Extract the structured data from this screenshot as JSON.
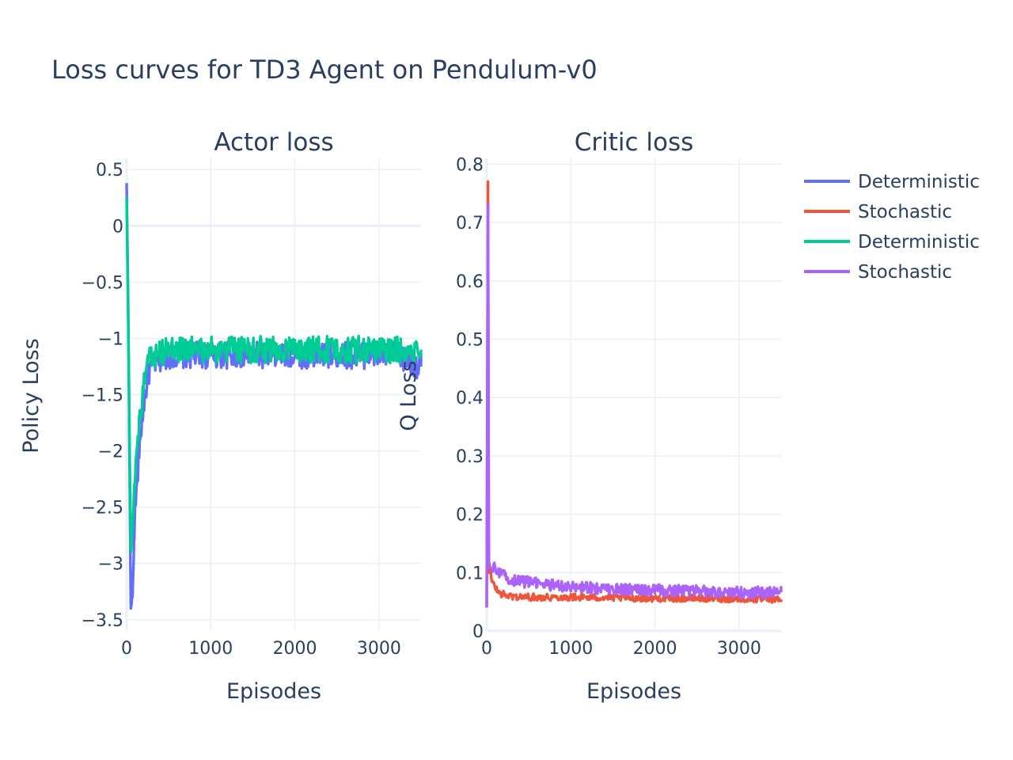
{
  "title": "Loss curves for TD3 Agent on Pendulum-v0",
  "legend": [
    "Deterministic",
    "Stochastic",
    "Deterministic",
    "Stochastic"
  ],
  "colors": {
    "deterministic_actor": "#636efa",
    "stochastic_actor": "#00cc96",
    "deterministic_critic": "#ef553b",
    "stochastic_critic": "#ab63fa",
    "text": "#2a3f5f",
    "grid": "#ebf0f8"
  },
  "chart_data": [
    {
      "type": "line",
      "title": "Actor loss",
      "xlabel": "Episodes",
      "ylabel": "Policy Loss",
      "xlim": [
        0,
        3500
      ],
      "ylim": [
        -3.6,
        0.6
      ],
      "xticks": [
        0,
        1000,
        2000,
        3000
      ],
      "xtick_labels": [
        "0",
        "1000",
        "2000",
        "3000"
      ],
      "yticks": [
        0.5,
        0,
        -0.5,
        -1,
        -1.5,
        -2,
        -2.5,
        -3,
        -3.5
      ],
      "ytick_labels": [
        "0.5",
        "0",
        "−0.5",
        "−1",
        "−1.5",
        "−2",
        "−2.5",
        "−3",
        "−3.5"
      ],
      "grid": true,
      "series": [
        {
          "name": "Deterministic",
          "color": "#636efa",
          "x": [
            0,
            20,
            50,
            70,
            90,
            120,
            160,
            200,
            260,
            350,
            500,
            700,
            1000,
            1300,
            1600,
            2000,
            2400,
            2800,
            3200,
            3500
          ],
          "y": [
            0.38,
            -0.8,
            -3.4,
            -3.3,
            -2.7,
            -2.3,
            -1.9,
            -1.6,
            -1.3,
            -1.2,
            -1.15,
            -1.15,
            -1.15,
            -1.15,
            -1.15,
            -1.15,
            -1.15,
            -1.15,
            -1.15,
            -1.25
          ],
          "noise_amplitude": 0.12
        },
        {
          "name": "Stochastic",
          "color": "#00cc96",
          "x": [
            0,
            20,
            50,
            70,
            90,
            120,
            160,
            200,
            260,
            350,
            500,
            700,
            1000,
            1300,
            1600,
            2000,
            2400,
            2800,
            3200,
            3500
          ],
          "y": [
            0.25,
            -0.9,
            -2.9,
            -2.6,
            -2.3,
            -2.0,
            -1.7,
            -1.45,
            -1.2,
            -1.15,
            -1.1,
            -1.1,
            -1.1,
            -1.1,
            -1.1,
            -1.1,
            -1.1,
            -1.1,
            -1.1,
            -1.1
          ],
          "noise_amplitude": 0.12
        }
      ]
    },
    {
      "type": "line",
      "title": "Critic loss",
      "xlabel": "Episodes",
      "ylabel": "Q Loss",
      "xlim": [
        0,
        3500
      ],
      "ylim": [
        0,
        0.81
      ],
      "xticks": [
        0,
        1000,
        2000,
        3000
      ],
      "xtick_labels": [
        "0",
        "1000",
        "2000",
        "3000"
      ],
      "yticks": [
        0,
        0.1,
        0.2,
        0.3,
        0.4,
        0.5,
        0.6,
        0.7,
        0.8
      ],
      "ytick_labels": [
        "0",
        "0.1",
        "0.2",
        "0.3",
        "0.4",
        "0.5",
        "0.6",
        "0.7",
        "0.8"
      ],
      "grid": true,
      "series": [
        {
          "name": "Deterministic",
          "color": "#ef553b",
          "x": [
            0,
            15,
            25,
            40,
            60,
            100,
            150,
            250,
            400,
            700,
            1000,
            1500,
            2000,
            2500,
            3000,
            3500
          ],
          "y": [
            0.04,
            0.77,
            0.1,
            0.11,
            0.085,
            0.075,
            0.065,
            0.06,
            0.058,
            0.058,
            0.058,
            0.057,
            0.056,
            0.056,
            0.055,
            0.054
          ],
          "noise_amplitude": 0.006
        },
        {
          "name": "Stochastic",
          "color": "#ab63fa",
          "x": [
            0,
            15,
            25,
            40,
            60,
            100,
            150,
            250,
            400,
            700,
            1000,
            1500,
            2000,
            2500,
            3000,
            3500
          ],
          "y": [
            0.04,
            0.73,
            0.12,
            0.11,
            0.105,
            0.11,
            0.1,
            0.09,
            0.085,
            0.08,
            0.075,
            0.072,
            0.07,
            0.068,
            0.066,
            0.066
          ],
          "noise_amplitude": 0.01
        }
      ]
    }
  ]
}
